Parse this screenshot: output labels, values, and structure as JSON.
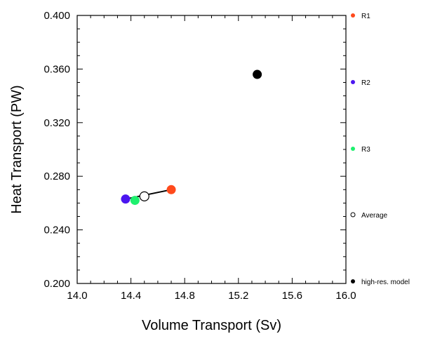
{
  "chart_data": {
    "type": "scatter",
    "xlabel": "Volume Transport (Sv)",
    "ylabel": "Heat Transport (PW)",
    "xlim": [
      14.0,
      16.0
    ],
    "ylim": [
      0.2,
      0.4
    ],
    "xticks": [
      "14.0",
      "14.4",
      "14.8",
      "15.2",
      "15.6",
      "16.0"
    ],
    "yticks": [
      "0.200",
      "0.240",
      "0.280",
      "0.320",
      "0.360",
      "0.400"
    ],
    "series": [
      {
        "name": "R1",
        "color": "#ff4a1c",
        "marker": "filled-circle",
        "x": 14.7,
        "y": 0.27
      },
      {
        "name": "R2",
        "color": "#4b16f0",
        "marker": "filled-circle",
        "x": 14.36,
        "y": 0.263
      },
      {
        "name": "R3",
        "color": "#1ef06e",
        "marker": "filled-circle",
        "x": 14.43,
        "y": 0.262
      },
      {
        "name": "Average",
        "color": "#000000",
        "marker": "open-circle",
        "x": 14.5,
        "y": 0.265
      },
      {
        "name": "high-res. model",
        "color": "#000000",
        "marker": "filled-circle",
        "x": 15.34,
        "y": 0.356
      }
    ],
    "connector_line": {
      "from": "R2",
      "to": "R1",
      "color": "#000000"
    },
    "legend_position": "right",
    "grid": false
  }
}
